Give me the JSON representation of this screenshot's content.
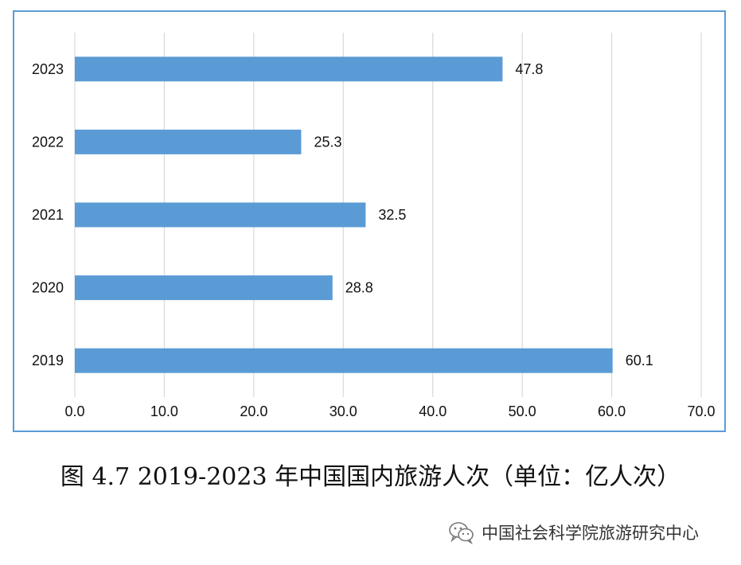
{
  "chart_data": {
    "type": "bar",
    "orientation": "horizontal",
    "categories": [
      "2023",
      "2022",
      "2021",
      "2020",
      "2019"
    ],
    "values": [
      47.8,
      25.3,
      32.5,
      28.8,
      60.1
    ],
    "value_labels": [
      "47.8",
      "25.3",
      "32.5",
      "28.8",
      "60.1"
    ],
    "xlim": [
      0,
      70
    ],
    "x_ticks": [
      "0.0",
      "10.0",
      "20.0",
      "30.0",
      "40.0",
      "50.0",
      "60.0",
      "70.0"
    ],
    "grid": "vertical",
    "bar_color": "#5b9bd5",
    "border_color": "#5b9bd5"
  },
  "caption": "图 4.7 2019-2023 年中国国内旅游人次（单位：亿人次）",
  "watermark": {
    "text": "中国社会科学院旅游研究中心",
    "icon": "wechat-icon"
  }
}
